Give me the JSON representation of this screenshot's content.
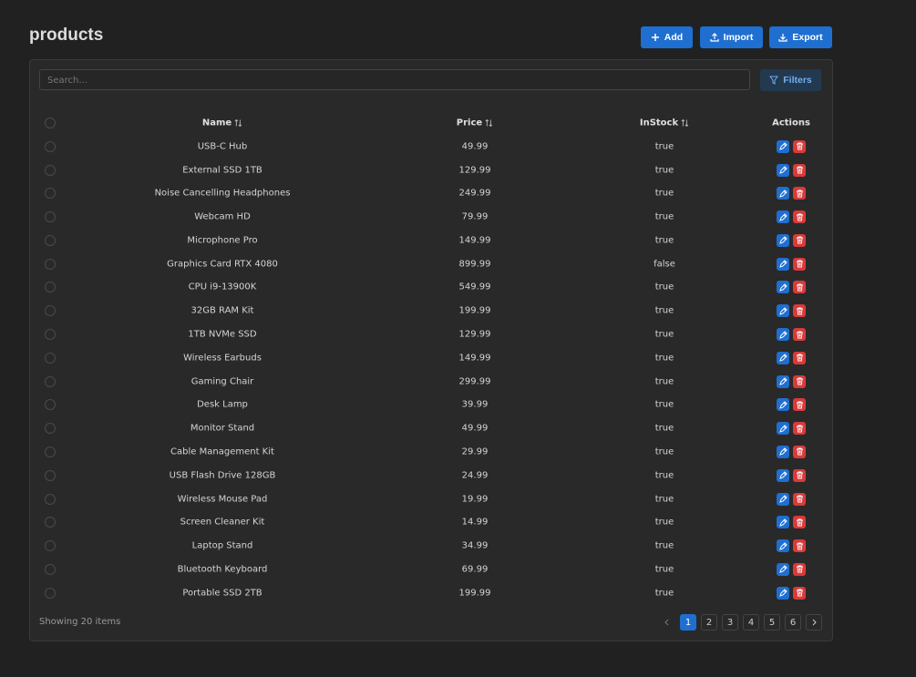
{
  "header": {
    "title": "products",
    "buttons": [
      "Add",
      "Import",
      "Export"
    ]
  },
  "toolbar": {
    "search_placeholder": "Search...",
    "filters": "Filters"
  },
  "table": {
    "columns": [
      "Name",
      "Price",
      "InStock",
      "Actions"
    ],
    "rows": [
      [
        "USB-C Hub",
        "49.99",
        "true"
      ],
      [
        "External SSD 1TB",
        "129.99",
        "true"
      ],
      [
        "Noise Cancelling Headphones",
        "249.99",
        "true"
      ],
      [
        "Webcam HD",
        "79.99",
        "true"
      ],
      [
        "Microphone Pro",
        "149.99",
        "true"
      ],
      [
        "Graphics Card RTX 4080",
        "899.99",
        "false"
      ],
      [
        "CPU i9-13900K",
        "549.99",
        "true"
      ],
      [
        "32GB RAM Kit",
        "199.99",
        "true"
      ],
      [
        "1TB NVMe SSD",
        "129.99",
        "true"
      ],
      [
        "Wireless Earbuds",
        "149.99",
        "true"
      ],
      [
        "Gaming Chair",
        "299.99",
        "true"
      ],
      [
        "Desk Lamp",
        "39.99",
        "true"
      ],
      [
        "Monitor Stand",
        "49.99",
        "true"
      ],
      [
        "Cable Management Kit",
        "29.99",
        "true"
      ],
      [
        "USB Flash Drive 128GB",
        "24.99",
        "true"
      ],
      [
        "Wireless Mouse Pad",
        "19.99",
        "true"
      ],
      [
        "Screen Cleaner Kit",
        "14.99",
        "true"
      ],
      [
        "Laptop Stand",
        "34.99",
        "true"
      ],
      [
        "Bluetooth Keyboard",
        "69.99",
        "true"
      ],
      [
        "Portable SSD 2TB",
        "199.99",
        "true"
      ]
    ]
  },
  "footer": {
    "status": "Showing 20 items",
    "pages": [
      "1",
      "2",
      "3",
      "4",
      "5",
      "6"
    ],
    "current_page": 0
  }
}
